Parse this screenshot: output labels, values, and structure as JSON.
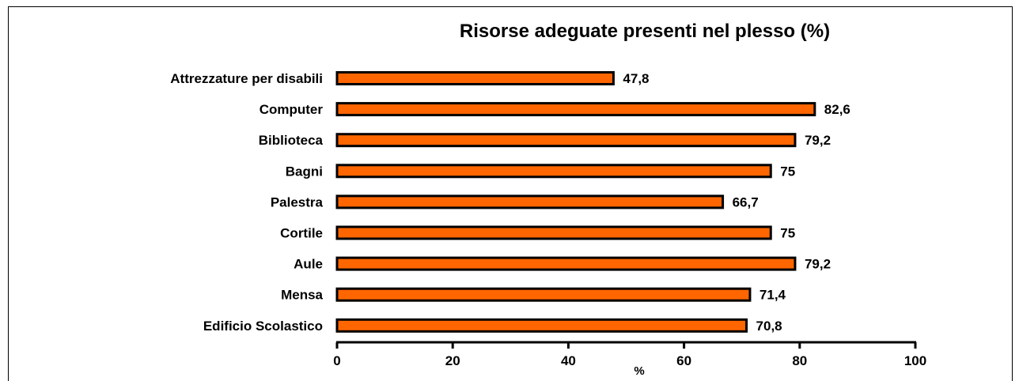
{
  "chart_data": {
    "type": "bar",
    "orientation": "horizontal",
    "title": "Risorse adeguate presenti nel plesso (%)",
    "xlabel": "%",
    "ylabel": "",
    "categories": [
      "Attrezzature per disabili",
      "Computer",
      "Biblioteca",
      "Bagni",
      "Palestra",
      "Cortile",
      "Aule",
      "Mensa",
      "Edificio Scolastico"
    ],
    "values": [
      47.8,
      82.6,
      79.2,
      75,
      66.7,
      75,
      79.2,
      71.4,
      70.8
    ],
    "value_labels": [
      "47,8",
      "82,6",
      "79,2",
      "75",
      "66,7",
      "75",
      "79,2",
      "71,4",
      "70,8"
    ],
    "xlim": [
      0,
      100
    ],
    "xticks": [
      0,
      20,
      40,
      60,
      80,
      100
    ],
    "grid": false,
    "legend": "none",
    "bar_color": "#FF6600",
    "bar_edge_color": "#000000"
  }
}
